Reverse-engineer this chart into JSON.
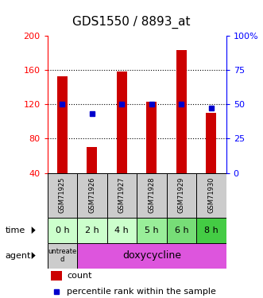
{
  "title": "GDS1550 / 8893_at",
  "samples": [
    "GSM71925",
    "GSM71926",
    "GSM71927",
    "GSM71928",
    "GSM71929",
    "GSM71930"
  ],
  "counts": [
    153,
    70,
    158,
    123,
    183,
    110
  ],
  "percentiles": [
    50,
    43,
    50,
    50,
    50,
    47
  ],
  "times": [
    "0 h",
    "2 h",
    "4 h",
    "5 h",
    "6 h",
    "8 h"
  ],
  "agent_untreated": "untreate\nd",
  "agent_treated": "doxycycline",
  "ylim_left": [
    40,
    200
  ],
  "ylim_right": [
    0,
    100
  ],
  "yticks_left": [
    40,
    80,
    120,
    160,
    200
  ],
  "ytick_labels_left": [
    "40",
    "80",
    "120",
    "160",
    "200"
  ],
  "yticks_right": [
    0,
    25,
    50,
    75,
    100
  ],
  "ytick_labels_right": [
    "0",
    "25",
    "50",
    "75",
    "100%"
  ],
  "bar_color": "#cc0000",
  "dot_color": "#0000cc",
  "title_fontsize": 11,
  "tick_fontsize": 8,
  "bar_width": 0.35,
  "sample_bg_color": "#cccccc",
  "time_colors": [
    "#ccffcc",
    "#ccffcc",
    "#ccffcc",
    "#99ee99",
    "#77dd77",
    "#44cc44"
  ],
  "agent_untreated_color": "#cccccc",
  "agent_treated_color": "#dd55dd",
  "legend_count_color": "#cc0000",
  "legend_pct_color": "#0000cc"
}
